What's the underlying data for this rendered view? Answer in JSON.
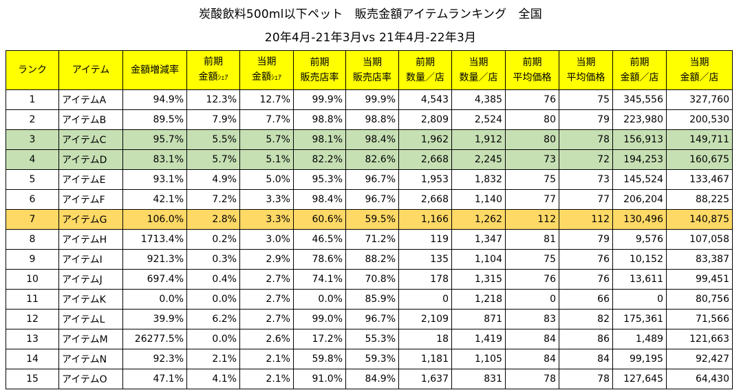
{
  "title_line1": "炭酸飲料500ml以下ペット　販売金額アイテムランキング　全国",
  "title_line2": "20年4月-21年3月vs 21年4月-22年3月",
  "columns": [
    {
      "l1": "ランク",
      "l2": ""
    },
    {
      "l1": "アイテム",
      "l2": ""
    },
    {
      "l1": "金額増減率",
      "l2": ""
    },
    {
      "l1": "前期",
      "l2a": "金額",
      "l2b": "ｼｪｱ"
    },
    {
      "l1": "当期",
      "l2a": "金額",
      "l2b": "ｼｪｱ"
    },
    {
      "l1": "前期",
      "l2": "販売店率"
    },
    {
      "l1": "当期",
      "l2": "販売店率"
    },
    {
      "l1": "前期",
      "l2": "数量／店"
    },
    {
      "l1": "当期",
      "l2": "数量／店"
    },
    {
      "l1": "前期",
      "l2": "平均価格"
    },
    {
      "l1": "当期",
      "l2": "平均価格"
    },
    {
      "l1": "前期",
      "l2": "金額／店"
    },
    {
      "l1": "当期",
      "l2": "金額／店"
    }
  ],
  "rows": [
    [
      "1",
      "アイテムA",
      "94.9%",
      "12.3%",
      "12.7%",
      "99.9%",
      "99.9%",
      "4,543",
      "4,385",
      "76",
      "75",
      "345,556",
      "327,760"
    ],
    [
      "2",
      "アイテムB",
      "89.5%",
      "7.9%",
      "7.7%",
      "98.8%",
      "98.8%",
      "2,809",
      "2,524",
      "80",
      "79",
      "223,980",
      "200,530"
    ],
    [
      "3",
      "アイテムC",
      "95.7%",
      "5.5%",
      "5.7%",
      "98.1%",
      "98.4%",
      "1,962",
      "1,912",
      "80",
      "78",
      "156,913",
      "149,711"
    ],
    [
      "4",
      "アイテムD",
      "83.1%",
      "5.7%",
      "5.1%",
      "82.2%",
      "82.6%",
      "2,668",
      "2,245",
      "73",
      "72",
      "194,253",
      "160,675"
    ],
    [
      "5",
      "アイテムE",
      "93.1%",
      "4.9%",
      "5.0%",
      "95.3%",
      "96.7%",
      "1,953",
      "1,832",
      "75",
      "73",
      "145,524",
      "133,467"
    ],
    [
      "6",
      "アイテムF",
      "42.1%",
      "7.2%",
      "3.3%",
      "98.4%",
      "96.7%",
      "2,668",
      "1,140",
      "77",
      "77",
      "206,204",
      "88,225"
    ],
    [
      "7",
      "アイテムG",
      "106.0%",
      "2.8%",
      "3.3%",
      "60.6%",
      "59.5%",
      "1,166",
      "1,262",
      "112",
      "112",
      "130,496",
      "140,875"
    ],
    [
      "8",
      "アイテムH",
      "1713.4%",
      "0.2%",
      "3.0%",
      "46.5%",
      "71.2%",
      "119",
      "1,347",
      "81",
      "79",
      "9,576",
      "107,058"
    ],
    [
      "9",
      "アイテムI",
      "921.3%",
      "0.3%",
      "2.9%",
      "78.6%",
      "88.2%",
      "135",
      "1,104",
      "75",
      "76",
      "10,152",
      "83,387"
    ],
    [
      "10",
      "アイテムJ",
      "697.4%",
      "0.4%",
      "2.7%",
      "74.1%",
      "70.8%",
      "178",
      "1,315",
      "76",
      "76",
      "13,611",
      "99,451"
    ],
    [
      "11",
      "アイテムK",
      "0.0%",
      "0.0%",
      "2.7%",
      "0.0%",
      "85.9%",
      "0",
      "1,218",
      "0",
      "66",
      "0",
      "80,756"
    ],
    [
      "12",
      "アイテムL",
      "39.9%",
      "6.2%",
      "2.7%",
      "99.0%",
      "96.7%",
      "2,109",
      "871",
      "83",
      "82",
      "175,361",
      "71,566"
    ],
    [
      "13",
      "アイテムM",
      "26277.5%",
      "0.0%",
      "2.6%",
      "17.2%",
      "55.3%",
      "18",
      "1,419",
      "84",
      "86",
      "1,489",
      "121,663"
    ],
    [
      "14",
      "アイテムN",
      "92.3%",
      "2.1%",
      "2.1%",
      "59.8%",
      "59.3%",
      "1,181",
      "1,105",
      "84",
      "84",
      "99,195",
      "92,427"
    ],
    [
      "15",
      "アイテムO",
      "47.1%",
      "4.1%",
      "2.1%",
      "91.0%",
      "84.9%",
      "1,637",
      "831",
      "78",
      "78",
      "127,645",
      "64,430"
    ]
  ],
  "highlight_colors": {
    "header": "#ffff00",
    "green_rows": "#c6e0b4",
    "orange_row": "#ffd966"
  }
}
